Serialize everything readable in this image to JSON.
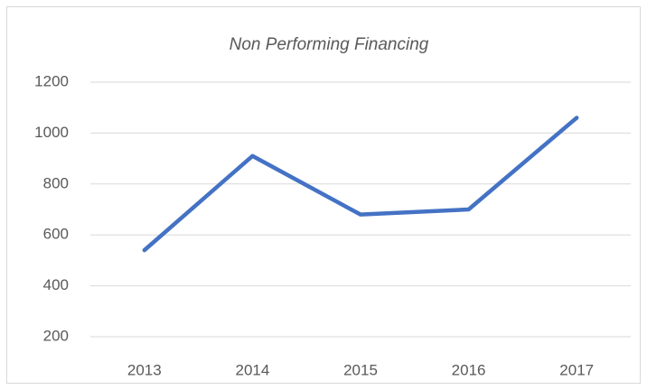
{
  "chart_data": {
    "type": "line",
    "title": "Non Performing Financing",
    "categories": [
      "2013",
      "2014",
      "2015",
      "2016",
      "2017"
    ],
    "series": [
      {
        "name": "Non Performing Financing",
        "color": "#4472c4",
        "values": [
          540,
          910,
          680,
          700,
          1060
        ]
      }
    ],
    "ylim": [
      200,
      1200
    ],
    "yticks": [
      200,
      400,
      600,
      800,
      1000,
      1200
    ],
    "grid": true
  }
}
